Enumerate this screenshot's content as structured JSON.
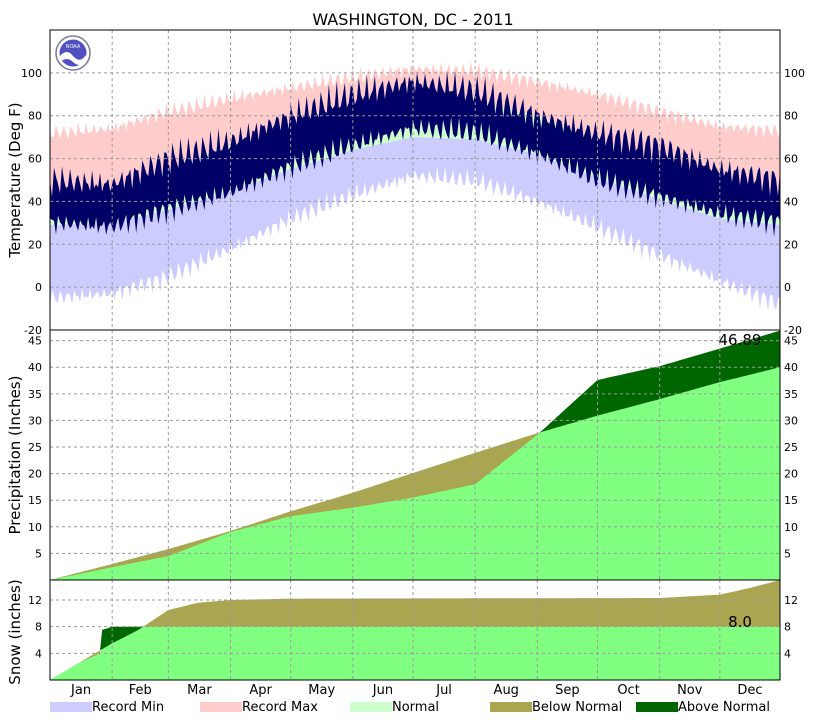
{
  "title": "WASHINGTON, DC - 2011",
  "colors": {
    "record_min": "#ccccff",
    "record_max": "#ffcccc",
    "normal_band": "#ccffcc",
    "actual_temp": "#000066",
    "normal_cum": "#80ff80",
    "below_normal": "#aaa550",
    "above_normal": "#006600",
    "grid": "#9a9a9a",
    "logo": "#5050c0"
  },
  "months": [
    "Jan",
    "Feb",
    "Mar",
    "Apr",
    "May",
    "Jun",
    "Jul",
    "Aug",
    "Sep",
    "Oct",
    "Nov",
    "Dec"
  ],
  "legend": [
    {
      "label": "Record Min",
      "color": "#ccccff"
    },
    {
      "label": "Record Max",
      "color": "#ffcccc"
    },
    {
      "label": "Normal",
      "color": "#ccffcc"
    },
    {
      "label": "Below Normal",
      "color": "#aaa550"
    },
    {
      "label": "Above Normal",
      "color": "#006600"
    }
  ],
  "logo_text": "NOAA",
  "chart_data": [
    {
      "type": "area",
      "panel": "temperature",
      "ylabel": "Temperature (Deg F)",
      "ylim": [
        -20,
        120
      ],
      "yticks": [
        -20,
        0,
        20,
        40,
        60,
        80,
        100
      ],
      "grid": true,
      "x_unit": "month-start, day of year",
      "series": [
        {
          "name": "Record Max",
          "x": [
            1,
            32,
            60,
            91,
            121,
            152,
            182,
            213,
            244,
            274,
            305,
            335,
            365
          ],
          "values": [
            72,
            74,
            82,
            88,
            93,
            98,
            102,
            101,
            96,
            90,
            82,
            75,
            73
          ]
        },
        {
          "name": "Normal High",
          "x": [
            1,
            32,
            60,
            91,
            121,
            152,
            182,
            213,
            244,
            274,
            305,
            335,
            365
          ],
          "values": [
            43,
            46,
            55,
            66,
            75,
            84,
            89,
            87,
            80,
            69,
            58,
            47,
            43
          ]
        },
        {
          "name": "Normal Low",
          "x": [
            1,
            32,
            60,
            91,
            121,
            152,
            182,
            213,
            244,
            274,
            305,
            335,
            365
          ],
          "values": [
            29,
            30,
            36,
            45,
            55,
            64,
            70,
            69,
            62,
            51,
            41,
            32,
            29
          ]
        },
        {
          "name": "Record Min",
          "x": [
            1,
            32,
            60,
            91,
            121,
            152,
            182,
            213,
            244,
            274,
            305,
            335,
            365
          ],
          "values": [
            -5,
            -3,
            5,
            18,
            32,
            43,
            52,
            50,
            40,
            28,
            15,
            3,
            -8
          ]
        },
        {
          "name": "Actual High",
          "x": [
            1,
            32,
            60,
            91,
            121,
            152,
            182,
            213,
            244,
            274,
            305,
            335,
            365
          ],
          "values": [
            50,
            48,
            60,
            68,
            80,
            90,
            96,
            92,
            80,
            72,
            66,
            55,
            50
          ]
        },
        {
          "name": "Actual Low",
          "x": [
            1,
            32,
            60,
            91,
            121,
            152,
            182,
            213,
            244,
            274,
            305,
            335,
            365
          ],
          "values": [
            30,
            28,
            36,
            44,
            56,
            66,
            74,
            72,
            62,
            50,
            42,
            34,
            30
          ]
        }
      ]
    },
    {
      "type": "area",
      "panel": "precipitation",
      "ylabel": "Precipitation (Inches)",
      "ylim": [
        0,
        47
      ],
      "yticks": [
        5,
        10,
        15,
        20,
        25,
        30,
        35,
        40,
        45
      ],
      "grid": true,
      "annotation": "46.89",
      "series": [
        {
          "name": "Normal",
          "x": [
            1,
            32,
            60,
            91,
            121,
            152,
            182,
            213,
            244,
            274,
            305,
            335,
            365
          ],
          "values": [
            0,
            3.0,
            5.8,
            9.2,
            12.9,
            16.4,
            20.1,
            23.9,
            27.6,
            30.9,
            34.0,
            37.2,
            40.0
          ]
        },
        {
          "name": "Observed",
          "x": [
            1,
            32,
            60,
            91,
            121,
            152,
            182,
            213,
            244,
            274,
            305,
            335,
            365
          ],
          "values": [
            0,
            2.4,
            4.5,
            9.0,
            12.0,
            13.6,
            15.5,
            18.0,
            27.3,
            37.6,
            40.2,
            43.5,
            46.89
          ]
        }
      ]
    },
    {
      "type": "area",
      "panel": "snow",
      "ylabel": "Snow (inches)",
      "ylim": [
        0,
        15
      ],
      "yticks": [
        4,
        8,
        12
      ],
      "grid": true,
      "annotation": "8.0",
      "series": [
        {
          "name": "Normal",
          "x": [
            1,
            15,
            32,
            45,
            60,
            75,
            91,
            121,
            305,
            335,
            350,
            365
          ],
          "values": [
            0,
            2.5,
            5.5,
            7.5,
            10.5,
            11.6,
            12.0,
            12.2,
            12.3,
            12.8,
            13.8,
            15.0
          ]
        },
        {
          "name": "Observed",
          "x": [
            1,
            15,
            26,
            27,
            32,
            45,
            60,
            75,
            91,
            365
          ],
          "values": [
            0,
            2.5,
            4.0,
            7.5,
            8.0,
            8.0,
            8.0,
            8.0,
            8.0,
            8.0
          ]
        }
      ]
    }
  ]
}
